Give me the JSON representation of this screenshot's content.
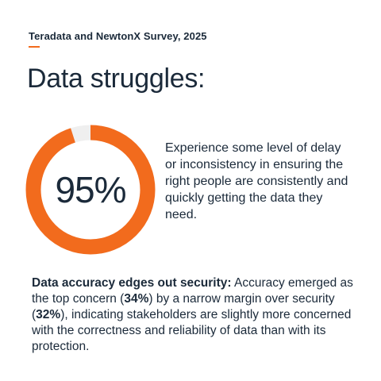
{
  "source": "Teradata and NewtonX Survey, 2025",
  "headline": "Data struggles:",
  "chart_data": {
    "type": "pie",
    "variant": "donut",
    "value_percent": 95,
    "label": "95%",
    "colors": {
      "filled": "#f26b1d",
      "remainder": "#efefef"
    }
  },
  "stat_description": "Experience some level of delay or inconsistency in ensuring the right people are consistently and quickly getting the data they need.",
  "paragraph": {
    "lead": "Data accuracy edges out security:",
    "t1": " Accuracy emerged as the top concern (",
    "v1": "34%",
    "t2": ") by a narrow margin over security (",
    "v2": "32%",
    "t3": "), indicating stakeholders are slightly more concerned with the correctness and reliability of data than with its protection."
  },
  "colors": {
    "accent": "#f26b1d",
    "text": "#1b2a3a"
  }
}
